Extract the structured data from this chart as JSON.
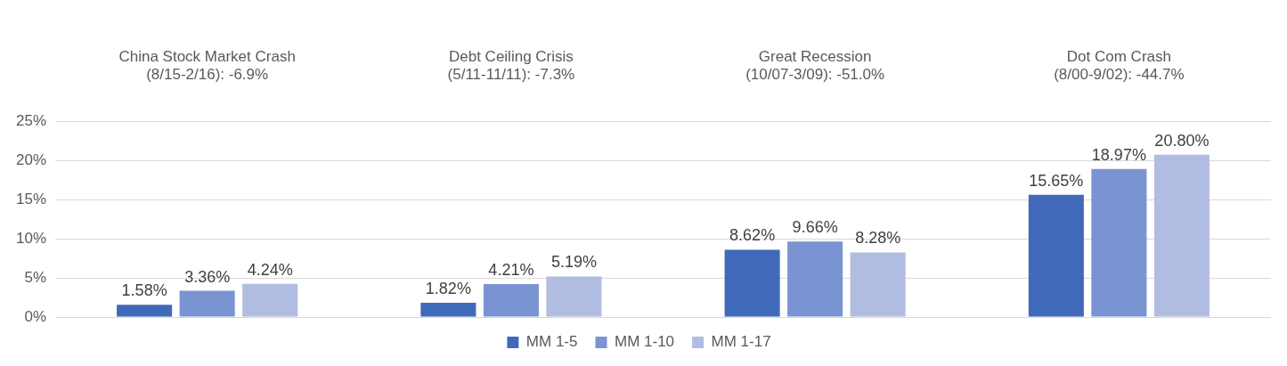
{
  "chart_data": {
    "type": "bar",
    "categories": [
      "China Stock Market Crash\n(8/15-2/16): -6.9%",
      "Debt Ceiling Crisis\n(5/11-11/11): -7.3%",
      "Great Recession\n(10/07-3/09): -51.0%",
      "Dot Com Crash\n(8/00-9/02): -44.7%"
    ],
    "series": [
      {
        "name": "MM 1-5",
        "color": "#4169b9",
        "values": [
          1.58,
          1.82,
          8.62,
          15.65
        ],
        "value_labels": [
          "1.58%",
          "1.82%",
          "8.62%",
          "15.65%"
        ]
      },
      {
        "name": "MM 1-10",
        "color": "#7a94d1",
        "values": [
          3.36,
          4.21,
          9.66,
          18.97
        ],
        "value_labels": [
          "3.36%",
          "4.21%",
          "9.66%",
          "18.97%"
        ]
      },
      {
        "name": "MM 1-17",
        "color": "#b1bde0",
        "values": [
          4.24,
          5.19,
          8.28,
          20.8
        ],
        "value_labels": [
          "4.24%",
          "5.19%",
          "8.28%",
          "20.80%"
        ]
      }
    ],
    "ylim": [
      0,
      25
    ],
    "yticks": [
      {
        "value": 0,
        "label": "0%"
      },
      {
        "value": 5,
        "label": "5%"
      },
      {
        "value": 10,
        "label": "10%"
      },
      {
        "value": 15,
        "label": "15%"
      },
      {
        "value": 20,
        "label": "20%"
      },
      {
        "value": 25,
        "label": "25%"
      }
    ],
    "grid": "y",
    "legend": "bottom"
  }
}
